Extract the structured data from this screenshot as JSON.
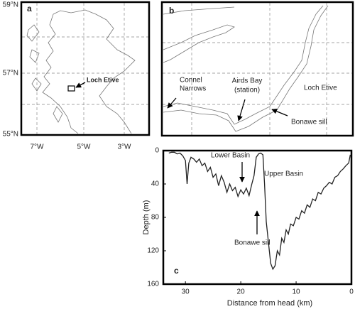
{
  "map_a": {
    "label": "a",
    "lat_labels": [
      "59°N",
      "57°N",
      "55°N"
    ],
    "lon_labels": [
      "7°W",
      "5°W",
      "3°W"
    ],
    "annotation": "Loch Etive"
  },
  "map_b": {
    "label": "b",
    "connel": [
      "Connel",
      "Narrows"
    ],
    "airds": [
      "Airds Bay",
      "(station)"
    ],
    "loch": "Loch Etive",
    "sill": "Bonawe sill"
  },
  "chart_data": {
    "type": "line",
    "panel_label": "c",
    "x_label": "Distance from head (km)",
    "y_label": "Depth (m)",
    "annotations": [
      "Lower Basin",
      "Upper Basin",
      "Bonawe sill"
    ],
    "x": [
      33,
      32.5,
      32,
      31.5,
      31,
      30.5,
      30,
      29.7,
      29.4,
      29,
      28.5,
      28,
      27.5,
      27,
      26.5,
      26,
      25.5,
      25,
      24.5,
      24,
      23.5,
      23,
      22.5,
      22,
      21.5,
      21,
      20.5,
      20,
      19.5,
      19,
      18.5,
      18,
      17.6,
      17.2,
      16.8,
      16.4,
      16,
      15.7,
      15.4,
      15,
      14.6,
      14.2,
      13.8,
      13.4,
      13,
      12.6,
      12.2,
      11.8,
      11.4,
      11,
      10.5,
      10,
      9.5,
      9,
      8.5,
      8,
      7.5,
      7,
      6.5,
      6,
      5.5,
      5,
      4.5,
      4,
      3.5,
      3,
      2.5,
      2,
      1.5,
      1,
      0.5,
      0.2
    ],
    "series": [
      {
        "color": "#222222",
        "values": [
          3,
          2,
          2,
          4,
          3,
          6,
          12,
          40,
          15,
          8,
          10,
          14,
          10,
          18,
          15,
          25,
          20,
          32,
          28,
          42,
          30,
          38,
          50,
          40,
          48,
          44,
          55,
          47,
          52,
          45,
          54,
          40,
          30,
          8,
          4,
          3,
          5,
          40,
          85,
          110,
          135,
          142,
          138,
          120,
          125,
          105,
          110,
          95,
          100,
          88,
          90,
          80,
          82,
          72,
          75,
          65,
          68,
          58,
          60,
          50,
          52,
          45,
          42,
          38,
          40,
          32,
          30,
          25,
          22,
          18,
          15,
          5
        ]
      }
    ],
    "xlim": [
      34,
      0
    ],
    "xticks": [
      30,
      20,
      10,
      0
    ],
    "ylim": [
      0,
      160
    ],
    "yticks": [
      0,
      40,
      80,
      120,
      160
    ]
  }
}
